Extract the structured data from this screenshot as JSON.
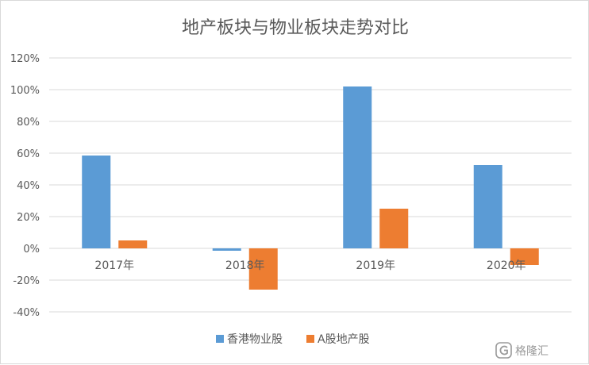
{
  "chart_data": {
    "type": "bar",
    "title": "地产板块与物业板块走势对比",
    "categories": [
      "2017年",
      "2018年",
      "2019年",
      "2020年"
    ],
    "series": [
      {
        "name": "香港物业股",
        "values": [
          58.5,
          -1.5,
          102,
          52.5
        ],
        "color": "#5b9bd5"
      },
      {
        "name": "A股地产股",
        "values": [
          5,
          -26,
          25,
          -10.5
        ],
        "color": "#ed7d31"
      }
    ],
    "y_unit": "%",
    "ylim": [
      -40,
      120
    ],
    "y_ticks": [
      120,
      100,
      80,
      60,
      40,
      20,
      0,
      -20,
      -40
    ],
    "y_tick_labels": [
      "120%",
      "100%",
      "80%",
      "60%",
      "40%",
      "20%",
      "0%",
      "-20%",
      "-40%"
    ],
    "grid": true,
    "legend_position": "bottom"
  },
  "watermark": {
    "text": "格隆汇",
    "icon": "g-logo-icon"
  }
}
